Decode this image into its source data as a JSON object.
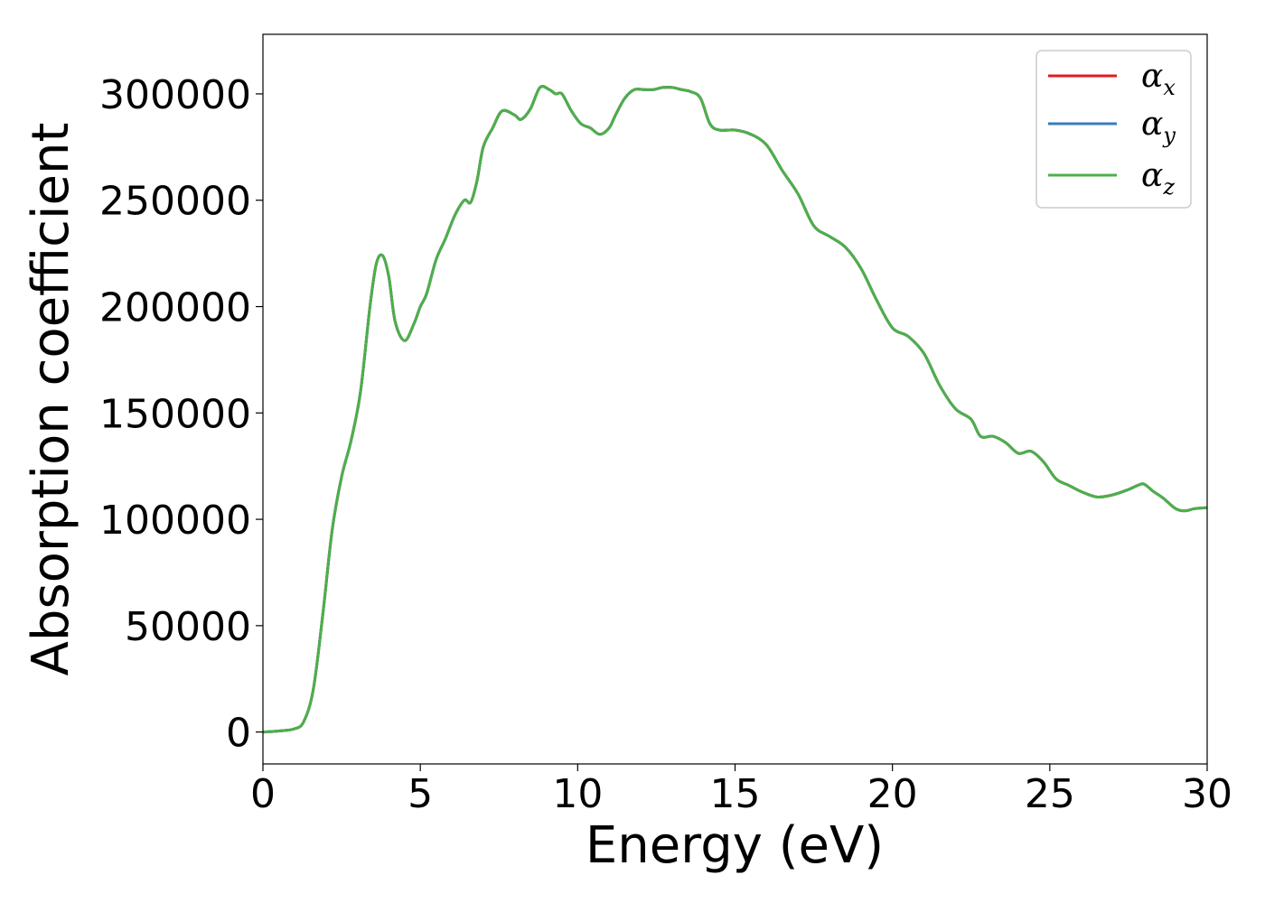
{
  "chart_data": {
    "type": "line",
    "xlabel": "Energy (eV)",
    "ylabel": "Absorption coefficient",
    "xlim": [
      0,
      30
    ],
    "ylim": [
      -15000,
      328000
    ],
    "xticks": [
      0,
      5,
      10,
      15,
      20,
      25,
      30
    ],
    "yticks": [
      0,
      50000,
      100000,
      150000,
      200000,
      250000,
      300000
    ],
    "grid": false,
    "legend_position": "top-right",
    "x": [
      0,
      0.5,
      1.0,
      1.3,
      1.6,
      1.9,
      2.2,
      2.5,
      2.8,
      3.1,
      3.4,
      3.6,
      3.8,
      4.0,
      4.2,
      4.5,
      4.8,
      5.0,
      5.2,
      5.5,
      5.8,
      6.1,
      6.4,
      6.6,
      6.8,
      7.0,
      7.3,
      7.6,
      8.0,
      8.2,
      8.5,
      8.8,
      9.1,
      9.3,
      9.5,
      9.8,
      10.1,
      10.4,
      10.7,
      11.0,
      11.2,
      11.5,
      11.8,
      12.1,
      12.4,
      12.7,
      13.0,
      13.3,
      13.6,
      13.9,
      14.2,
      14.5,
      15.0,
      15.5,
      16.0,
      16.5,
      17.0,
      17.5,
      18.0,
      18.5,
      19.0,
      19.5,
      20.0,
      20.5,
      21.0,
      21.5,
      22.0,
      22.5,
      22.8,
      23.2,
      23.6,
      24.0,
      24.4,
      24.8,
      25.2,
      25.6,
      26.0,
      26.5,
      27.0,
      27.5,
      27.8,
      28.0,
      28.3,
      28.6,
      29.0,
      29.3,
      29.6,
      30.0
    ],
    "series": [
      {
        "name": "α",
        "subscript": "x",
        "color": "#e41a1c",
        "values": [
          0,
          500,
          1500,
          5000,
          20000,
          55000,
          95000,
          120000,
          137000,
          160000,
          200000,
          220000,
          224000,
          214000,
          193000,
          184000,
          192000,
          200000,
          206000,
          222000,
          232000,
          243000,
          250000,
          249000,
          259000,
          275000,
          284000,
          292000,
          290000,
          288000,
          293000,
          303000,
          302000,
          300000,
          300000,
          292000,
          286000,
          284000,
          281000,
          284000,
          290000,
          298000,
          302000,
          302000,
          302000,
          303000,
          303000,
          302000,
          301000,
          298000,
          286000,
          283000,
          283000,
          281000,
          276000,
          264000,
          253000,
          238000,
          233000,
          228000,
          218000,
          203000,
          190000,
          186000,
          178000,
          163000,
          152000,
          147000,
          139000,
          139000,
          136000,
          131000,
          132000,
          127000,
          119000,
          116000,
          113000,
          110500,
          111500,
          114000,
          116000,
          116500,
          113000,
          110000,
          105000,
          104000,
          105000,
          105500
        ]
      },
      {
        "name": "α",
        "subscript": "y",
        "color": "#377eb8",
        "values": [
          0,
          500,
          1500,
          5000,
          20000,
          55000,
          95000,
          120000,
          137000,
          160000,
          200000,
          220000,
          224000,
          214000,
          193000,
          184000,
          192000,
          200000,
          206000,
          222000,
          232000,
          243000,
          250000,
          249000,
          259000,
          275000,
          284000,
          292000,
          290000,
          288000,
          293000,
          303000,
          302000,
          300000,
          300000,
          292000,
          286000,
          284000,
          281000,
          284000,
          290000,
          298000,
          302000,
          302000,
          302000,
          303000,
          303000,
          302000,
          301000,
          298000,
          286000,
          283000,
          283000,
          281000,
          276000,
          264000,
          253000,
          238000,
          233000,
          228000,
          218000,
          203000,
          190000,
          186000,
          178000,
          163000,
          152000,
          147000,
          139000,
          139000,
          136000,
          131000,
          132000,
          127000,
          119000,
          116000,
          113000,
          110500,
          111500,
          114000,
          116000,
          116500,
          113000,
          110000,
          105000,
          104000,
          105000,
          105500
        ]
      },
      {
        "name": "α",
        "subscript": "z",
        "color": "#4daf4a",
        "values": [
          0,
          500,
          1500,
          5000,
          20000,
          55000,
          95000,
          120000,
          137000,
          160000,
          200000,
          220000,
          224000,
          214000,
          193000,
          184000,
          192000,
          200000,
          206000,
          222000,
          232000,
          243000,
          250000,
          249000,
          259000,
          275000,
          284000,
          292000,
          290000,
          288000,
          293000,
          303000,
          302000,
          300000,
          300000,
          292000,
          286000,
          284000,
          281000,
          284000,
          290000,
          298000,
          302000,
          302000,
          302000,
          303000,
          303000,
          302000,
          301000,
          298000,
          286000,
          283000,
          283000,
          281000,
          276000,
          264000,
          253000,
          238000,
          233000,
          228000,
          218000,
          203000,
          190000,
          186000,
          178000,
          163000,
          152000,
          147000,
          139000,
          139000,
          136000,
          131000,
          132000,
          127000,
          119000,
          116000,
          113000,
          110500,
          111500,
          114000,
          116000,
          116500,
          113000,
          110000,
          105000,
          104000,
          105000,
          105500
        ]
      }
    ]
  }
}
